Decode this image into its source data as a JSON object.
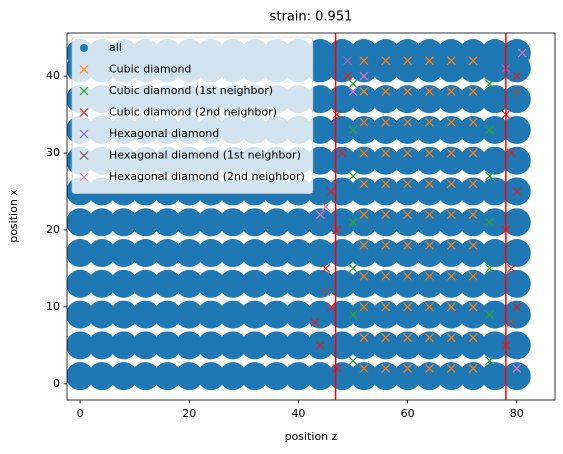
{
  "chart_data": {
    "type": "scatter",
    "title": "strain: 0.951",
    "xlabel": "position z",
    "ylabel": "position x",
    "xlim": [
      -2.4,
      87
    ],
    "ylim": [
      -2.1,
      45.6
    ],
    "xticks": [
      0,
      20,
      40,
      60,
      80
    ],
    "yticks": [
      0,
      10,
      20,
      30,
      40
    ],
    "vlines": [
      46.8,
      78.0
    ],
    "vline_color": "#ff0000",
    "legend": "upper left",
    "series": [
      {
        "name": "all",
        "color": "#1f77b4",
        "marker": "o",
        "x": [
          0,
          4,
          8,
          12,
          16,
          20,
          24,
          28,
          32,
          36,
          40,
          44,
          48,
          52,
          56,
          60,
          64,
          68,
          72,
          76,
          80,
          0,
          4,
          8,
          12,
          16,
          20,
          24,
          28,
          32,
          36,
          40,
          44,
          48,
          52,
          56,
          60,
          64,
          68,
          72,
          76,
          80,
          0,
          4,
          8,
          12,
          16,
          20,
          24,
          28,
          32,
          36,
          40,
          44,
          48,
          52,
          56,
          60,
          64,
          68,
          72,
          76,
          80,
          0,
          4,
          8,
          12,
          16,
          20,
          24,
          28,
          32,
          36,
          40,
          44,
          48,
          52,
          56,
          60,
          64,
          68,
          72,
          76,
          80,
          0,
          4,
          8,
          12,
          16,
          20,
          24,
          28,
          32,
          36,
          40,
          44,
          48,
          52,
          56,
          60,
          64,
          68,
          72,
          76,
          80,
          0,
          4,
          8,
          12,
          16,
          20,
          24,
          28,
          32,
          36,
          40,
          44,
          48,
          52,
          56,
          60,
          64,
          68,
          72,
          76,
          80,
          0,
          4,
          8,
          12,
          16,
          20,
          24,
          28,
          32,
          36,
          40,
          44,
          48,
          52,
          56,
          60,
          64,
          68,
          72,
          76,
          80,
          0,
          4,
          8,
          12,
          16,
          20,
          24,
          28,
          32,
          36,
          40,
          44,
          48,
          52,
          56,
          60,
          64,
          68,
          72,
          76,
          80,
          0,
          4,
          8,
          12,
          16,
          20,
          24,
          28,
          32,
          36,
          40,
          44,
          48,
          52,
          56,
          60,
          64,
          68,
          72,
          76,
          80,
          0,
          4,
          8,
          12,
          16,
          20,
          24,
          28,
          32,
          36,
          40,
          44,
          48,
          52,
          56,
          60,
          64,
          68,
          72,
          76,
          80,
          0,
          4,
          8,
          12,
          16,
          20,
          24,
          28,
          32,
          36,
          40,
          44,
          48,
          52,
          56,
          60,
          64,
          68,
          72,
          76,
          80,
          0,
          4,
          8,
          12,
          16,
          20,
          24,
          28,
          32,
          36,
          40,
          44,
          48,
          52,
          56,
          60,
          64,
          68,
          72,
          76,
          80
        ],
        "y": [
          1,
          1,
          1,
          1,
          1,
          1,
          1,
          1,
          1,
          1,
          1,
          1,
          1,
          1,
          1,
          1,
          1,
          1,
          1,
          1,
          1,
          5,
          5,
          5,
          5,
          5,
          5,
          5,
          5,
          5,
          5,
          5,
          5,
          5,
          5,
          5,
          5,
          5,
          5,
          5,
          5,
          5,
          9,
          9,
          9,
          9,
          9,
          9,
          9,
          9,
          9,
          9,
          9,
          9,
          9,
          9,
          9,
          9,
          9,
          9,
          9,
          9,
          9,
          13,
          13,
          13,
          13,
          13,
          13,
          13,
          13,
          13,
          13,
          13,
          13,
          13,
          13,
          13,
          13,
          13,
          13,
          13,
          13,
          13,
          17,
          17,
          17,
          17,
          17,
          17,
          17,
          17,
          17,
          17,
          17,
          17,
          17,
          17,
          17,
          17,
          17,
          17,
          17,
          17,
          17,
          21,
          21,
          21,
          21,
          21,
          21,
          21,
          21,
          21,
          21,
          21,
          21,
          21,
          21,
          21,
          21,
          21,
          21,
          21,
          21,
          21,
          25,
          25,
          25,
          25,
          25,
          25,
          25,
          25,
          25,
          25,
          25,
          25,
          25,
          25,
          25,
          25,
          25,
          25,
          25,
          25,
          25,
          29,
          29,
          29,
          29,
          29,
          29,
          29,
          29,
          29,
          29,
          29,
          29,
          29,
          29,
          29,
          29,
          29,
          29,
          29,
          29,
          29,
          33,
          33,
          33,
          33,
          33,
          33,
          33,
          33,
          33,
          33,
          33,
          33,
          33,
          33,
          33,
          33,
          33,
          33,
          33,
          33,
          33,
          37,
          37,
          37,
          37,
          37,
          37,
          37,
          37,
          37,
          37,
          37,
          37,
          37,
          37,
          37,
          37,
          37,
          37,
          37,
          37,
          37,
          41,
          41,
          41,
          41,
          41,
          41,
          41,
          41,
          41,
          41,
          41,
          41,
          41,
          41,
          41,
          41,
          41,
          41,
          41,
          41,
          41,
          43,
          43,
          43,
          43,
          43,
          43,
          43,
          43,
          43,
          43,
          43,
          43,
          43,
          43,
          43,
          43,
          43,
          43,
          43,
          43,
          43
        ]
      },
      {
        "name": "Cubic diamond",
        "color": "#ff7f0e",
        "marker": "x",
        "x": [
          52,
          56,
          60,
          64,
          68,
          72,
          52,
          56,
          60,
          64,
          68,
          72,
          52,
          56,
          60,
          64,
          68,
          72,
          52,
          56,
          60,
          64,
          68,
          72,
          52,
          56,
          60,
          64,
          68,
          72,
          52,
          56,
          60,
          64,
          68,
          72,
          52,
          56,
          60,
          64,
          68,
          72,
          52,
          56,
          60,
          64,
          68,
          72,
          52,
          56,
          60,
          64,
          68,
          72,
          52,
          56,
          60,
          64,
          68,
          72,
          52,
          56,
          60,
          64,
          68,
          72
        ],
        "y": [
          2,
          2,
          2,
          2,
          2,
          2,
          6,
          6,
          6,
          6,
          6,
          6,
          10,
          10,
          10,
          10,
          10,
          10,
          14,
          14,
          14,
          14,
          14,
          14,
          18,
          18,
          18,
          18,
          18,
          18,
          22,
          22,
          22,
          22,
          22,
          22,
          26,
          26,
          26,
          26,
          26,
          26,
          30,
          30,
          30,
          30,
          30,
          30,
          34,
          34,
          34,
          34,
          34,
          34,
          38,
          38,
          38,
          38,
          38,
          38,
          42,
          42,
          42,
          42,
          42,
          42
        ]
      },
      {
        "name": "Cubic diamond (1st neighbor)",
        "color": "#2ca02c",
        "marker": "x",
        "x": [
          50,
          50,
          50,
          50,
          50,
          50,
          50,
          75,
          75,
          75,
          75,
          75,
          75,
          75
        ],
        "y": [
          3,
          9,
          15,
          21,
          27,
          33,
          39,
          3,
          9,
          15,
          21,
          27,
          33,
          39
        ]
      },
      {
        "name": "Cubic diamond (2nd neighbor)",
        "color": "#d62728",
        "marker": "x",
        "x": [
          44,
          46,
          45,
          47,
          46,
          48,
          47,
          49,
          78,
          80,
          79,
          78,
          80,
          79,
          78,
          80,
          43,
          47
        ],
        "y": [
          5,
          10,
          15,
          20,
          25,
          30,
          35,
          40,
          5,
          10,
          15,
          20,
          25,
          30,
          35,
          40,
          8,
          2
        ]
      },
      {
        "name": "Hexagonal diamond",
        "color": "#9467bd",
        "marker": "x",
        "x": [
          49,
          78
        ],
        "y": [
          42,
          41
        ]
      },
      {
        "name": "Hexagonal diamond (1st neighbor)",
        "color": "#8c564b",
        "marker": "x",
        "x": [
          45,
          79,
          80
        ],
        "y": [
          12,
          8,
          38
        ]
      },
      {
        "name": "Hexagonal diamond (2nd neighbor)",
        "color": "#e377c2",
        "marker": "x",
        "x": [
          45,
          44,
          80,
          81,
          52,
          50
        ],
        "y": [
          23,
          22,
          2,
          43,
          40,
          38
        ]
      }
    ]
  }
}
